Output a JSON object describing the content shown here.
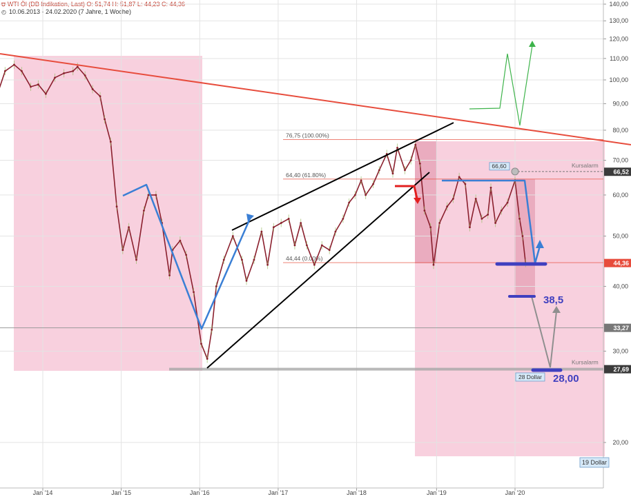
{
  "header": {
    "symbol_icon": "chart-logo-icon",
    "line1": "WTI Öl (DB Indikation, Last)  O: 51,74  H: 51,87  L: 44,23  C: 44,36",
    "line2": "10.06.2013 - 24.02.2020  (7 Jahre, 1 Woche)"
  },
  "chart_data": {
    "type": "line",
    "title": "WTI Öl (DB Indikation, Last)",
    "subtitle": "10.06.2013 - 24.02.2020  (7 Jahre, 1 Woche)",
    "xlabel": "",
    "ylabel": "",
    "y_scale": "log",
    "ylim": [
      17.5,
      142
    ],
    "y_ticks": [
      {
        "v": 140,
        "label": "140,00"
      },
      {
        "v": 130,
        "label": "130,00"
      },
      {
        "v": 120,
        "label": "120,00"
      },
      {
        "v": 110,
        "label": "110,00"
      },
      {
        "v": 100,
        "label": "100,00"
      },
      {
        "v": 90,
        "label": "90,00"
      },
      {
        "v": 80,
        "label": "80,00"
      },
      {
        "v": 70,
        "label": "70,00"
      },
      {
        "v": 60,
        "label": "60,00"
      },
      {
        "v": 50,
        "label": "50,00"
      },
      {
        "v": 40,
        "label": "40,00"
      },
      {
        "v": 30,
        "label": "30,00"
      },
      {
        "v": 20,
        "label": "20,00"
      }
    ],
    "x_ticks": [
      {
        "date": "2014-01-06",
        "label": "Jan '14"
      },
      {
        "date": "2015-01-05",
        "label": "Jan '15"
      },
      {
        "date": "2016-01-04",
        "label": "Jan '16"
      },
      {
        "date": "2017-01-02",
        "label": "Jan '17"
      },
      {
        "date": "2018-01-01",
        "label": "Jan '18"
      },
      {
        "date": "2019-01-07",
        "label": "Jan '19"
      },
      {
        "date": "2020-01-06",
        "label": "Jan '20"
      }
    ],
    "series": [
      {
        "color": "#8a1f2d",
        "points": [
          [
            "2013-06-10",
            94
          ],
          [
            "2013-07-15",
            104
          ],
          [
            "2013-08-26",
            107
          ],
          [
            "2013-09-30",
            104
          ],
          [
            "2013-11-11",
            97
          ],
          [
            "2013-12-16",
            98
          ],
          [
            "2014-01-20",
            94
          ],
          [
            "2014-03-03",
            101
          ],
          [
            "2014-04-14",
            103
          ],
          [
            "2014-05-26",
            104
          ],
          [
            "2014-06-16",
            106
          ],
          [
            "2014-07-21",
            102
          ],
          [
            "2014-08-25",
            96
          ],
          [
            "2014-09-29",
            93
          ],
          [
            "2014-10-20",
            84
          ],
          [
            "2014-11-17",
            76
          ],
          [
            "2014-12-15",
            57
          ],
          [
            "2015-01-12",
            47
          ],
          [
            "2015-02-09",
            52
          ],
          [
            "2015-03-16",
            45
          ],
          [
            "2015-04-20",
            56
          ],
          [
            "2015-05-11",
            60
          ],
          [
            "2015-06-15",
            60
          ],
          [
            "2015-07-13",
            53
          ],
          [
            "2015-08-17",
            42
          ],
          [
            "2015-08-31",
            47
          ],
          [
            "2015-10-05",
            49
          ],
          [
            "2015-11-02",
            46
          ],
          [
            "2015-12-07",
            39
          ],
          [
            "2016-01-11",
            31
          ],
          [
            "2016-02-08",
            29
          ],
          [
            "2016-02-29",
            33
          ],
          [
            "2016-03-21",
            40
          ],
          [
            "2016-04-25",
            45
          ],
          [
            "2016-06-06",
            50
          ],
          [
            "2016-07-18",
            45
          ],
          [
            "2016-08-08",
            41
          ],
          [
            "2016-09-12",
            45
          ],
          [
            "2016-10-17",
            51
          ],
          [
            "2016-11-14",
            44
          ],
          [
            "2016-12-12",
            52
          ],
          [
            "2017-01-16",
            53
          ],
          [
            "2017-02-20",
            54
          ],
          [
            "2017-03-20",
            48
          ],
          [
            "2017-04-17",
            53
          ],
          [
            "2017-05-15",
            48
          ],
          [
            "2017-06-19",
            44
          ],
          [
            "2017-07-24",
            48
          ],
          [
            "2017-08-28",
            47
          ],
          [
            "2017-09-25",
            51
          ],
          [
            "2017-10-30",
            54
          ],
          [
            "2017-11-27",
            58
          ],
          [
            "2017-12-25",
            60
          ],
          [
            "2018-01-22",
            64
          ],
          [
            "2018-02-12",
            60
          ],
          [
            "2018-03-19",
            63
          ],
          [
            "2018-04-16",
            67
          ],
          [
            "2018-05-21",
            72
          ],
          [
            "2018-06-18",
            66
          ],
          [
            "2018-07-09",
            74
          ],
          [
            "2018-08-13",
            67
          ],
          [
            "2018-09-10",
            70
          ],
          [
            "2018-10-01",
            75
          ],
          [
            "2018-10-22",
            69
          ],
          [
            "2018-11-12",
            56
          ],
          [
            "2018-12-10",
            52
          ],
          [
            "2018-12-24",
            44
          ],
          [
            "2019-01-21",
            53
          ],
          [
            "2019-02-25",
            57
          ],
          [
            "2019-03-25",
            59
          ],
          [
            "2019-04-22",
            65
          ],
          [
            "2019-05-20",
            63
          ],
          [
            "2019-06-10",
            52
          ],
          [
            "2019-07-08",
            59
          ],
          [
            "2019-08-05",
            54
          ],
          [
            "2019-09-02",
            55
          ],
          [
            "2019-09-16",
            62
          ],
          [
            "2019-10-07",
            53
          ],
          [
            "2019-11-04",
            56
          ],
          [
            "2019-12-02",
            58
          ],
          [
            "2020-01-06",
            64
          ],
          [
            "2020-01-27",
            54
          ],
          [
            "2020-02-10",
            50
          ],
          [
            "2020-02-24",
            44.36
          ]
        ]
      }
    ],
    "price_tags": [
      {
        "value": 66.52,
        "label": "66,52",
        "color": "#3b3b3b"
      },
      {
        "value": 44.36,
        "label": "44,36",
        "color": "#e74c3c"
      },
      {
        "value": 33.27,
        "label": "33,27",
        "color": "#777777"
      },
      {
        "value": 27.69,
        "label": "27,69",
        "color": "#3b3b3b"
      }
    ],
    "fibonacci": [
      {
        "value": 76.75,
        "label": "76,75 (100.00%)"
      },
      {
        "value": 64.4,
        "label": "64,40 (61.80%)"
      },
      {
        "value": 44.44,
        "label": "44,44 (0.00%)"
      }
    ],
    "alarms": [
      {
        "value": 66.6,
        "label": "Kursalarm",
        "tag": "66,60"
      },
      {
        "value": 27.69,
        "label": "Kursalarm"
      }
    ],
    "annotations": {
      "target1": "38,5",
      "target2": "28,00",
      "note_28": "28 Dollar",
      "note_19": "19 Dollar"
    },
    "colors": {
      "zone": "#f7c8d8",
      "trendline": "#e74c3c",
      "channel": "#000000",
      "wave": "#3a7fd5",
      "target": "#3f3fbf",
      "green_path": "#3db34a",
      "price_line": "#8a1f2d",
      "volume_up": "#9cbc6a"
    }
  }
}
